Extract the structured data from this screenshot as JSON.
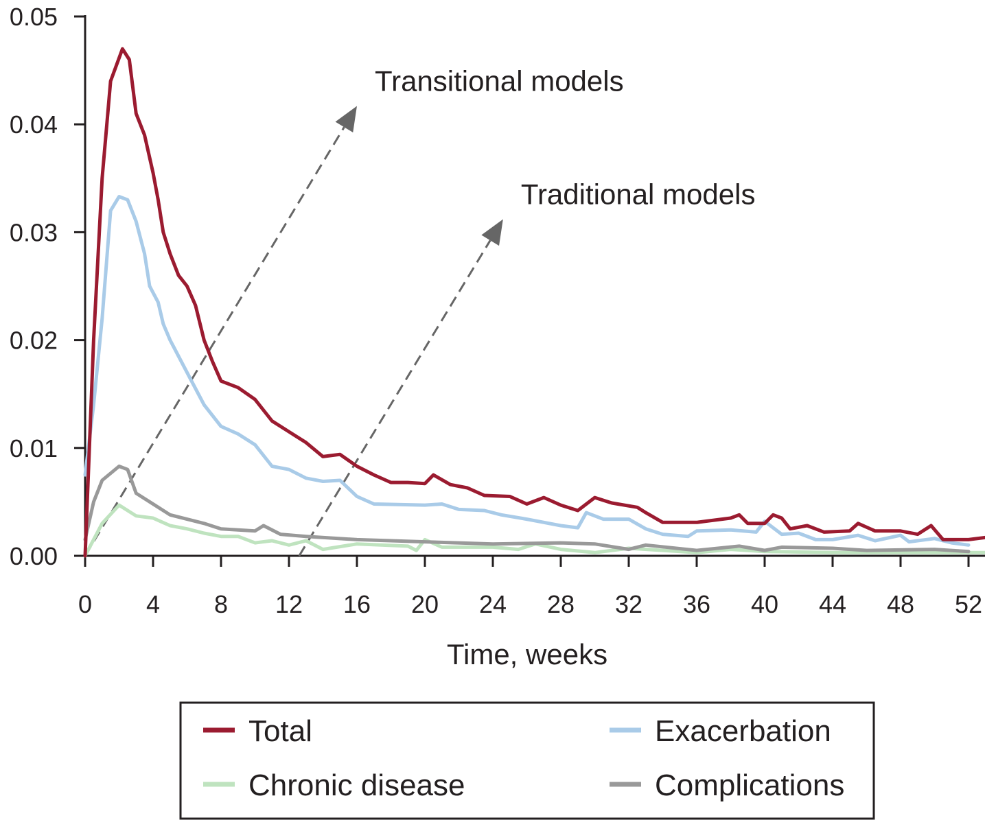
{
  "chart_data": {
    "type": "line",
    "title": "",
    "xlabel": "Time, weeks",
    "ylabel": "",
    "xlim": [
      0,
      53
    ],
    "ylim": [
      0,
      0.05
    ],
    "xticks": [
      0,
      4,
      8,
      12,
      16,
      20,
      24,
      28,
      32,
      36,
      40,
      44,
      48,
      52
    ],
    "yticks": [
      0.0,
      0.01,
      0.02,
      0.03,
      0.04,
      0.05
    ],
    "ytick_labels": [
      "0.00",
      "0.01",
      "0.02",
      "0.03",
      "0.04",
      "0.05"
    ],
    "grid": false,
    "legend_placement": "bottom",
    "series": [
      {
        "name": "Total",
        "color": "#9b1b30",
        "points": [
          [
            0,
            0
          ],
          [
            0.5,
            0.02
          ],
          [
            1,
            0.035
          ],
          [
            1.5,
            0.044
          ],
          [
            2.2,
            0.047
          ],
          [
            2.6,
            0.046
          ],
          [
            3,
            0.041
          ],
          [
            3.5,
            0.039
          ],
          [
            4,
            0.0355
          ],
          [
            4.3,
            0.033
          ],
          [
            4.6,
            0.03
          ],
          [
            5,
            0.028
          ],
          [
            5.5,
            0.026
          ],
          [
            6,
            0.025
          ],
          [
            6.5,
            0.0232
          ],
          [
            7,
            0.02
          ],
          [
            7.5,
            0.018
          ],
          [
            8,
            0.0162
          ],
          [
            9,
            0.0156
          ],
          [
            10,
            0.0145
          ],
          [
            11,
            0.0125
          ],
          [
            12,
            0.0115
          ],
          [
            13,
            0.0105
          ],
          [
            14,
            0.0092
          ],
          [
            15,
            0.0094
          ],
          [
            16,
            0.0083
          ],
          [
            17,
            0.0075
          ],
          [
            18,
            0.0068
          ],
          [
            19,
            0.0068
          ],
          [
            20,
            0.0067
          ],
          [
            20.5,
            0.0075
          ],
          [
            21.5,
            0.0066
          ],
          [
            22.5,
            0.0063
          ],
          [
            23.5,
            0.0056
          ],
          [
            25,
            0.0055
          ],
          [
            26,
            0.0048
          ],
          [
            27,
            0.0054
          ],
          [
            28,
            0.0047
          ],
          [
            29,
            0.0042
          ],
          [
            30,
            0.0054
          ],
          [
            31,
            0.0049
          ],
          [
            32.5,
            0.0045
          ],
          [
            33,
            0.004
          ],
          [
            34,
            0.0031
          ],
          [
            36,
            0.0031
          ],
          [
            38,
            0.0035
          ],
          [
            38.5,
            0.0038
          ],
          [
            39,
            0.003
          ],
          [
            40,
            0.003
          ],
          [
            40.5,
            0.0038
          ],
          [
            41,
            0.0035
          ],
          [
            41.5,
            0.0025
          ],
          [
            42.5,
            0.0028
          ],
          [
            43.5,
            0.0022
          ],
          [
            45,
            0.0023
          ],
          [
            45.5,
            0.003
          ],
          [
            46.5,
            0.0023
          ],
          [
            48,
            0.0023
          ],
          [
            49,
            0.002
          ],
          [
            49.8,
            0.0028
          ],
          [
            50.5,
            0.0015
          ],
          [
            52,
            0.0015
          ],
          [
            53,
            0.0017
          ]
        ]
      },
      {
        "name": "Exacerbation",
        "color": "#a9cbe8",
        "points": [
          [
            0,
            0.0075
          ],
          [
            0.5,
            0.014
          ],
          [
            1,
            0.022
          ],
          [
            1.5,
            0.032
          ],
          [
            2,
            0.0333
          ],
          [
            2.5,
            0.033
          ],
          [
            3,
            0.031
          ],
          [
            3.5,
            0.028
          ],
          [
            3.8,
            0.025
          ],
          [
            4.3,
            0.0235
          ],
          [
            4.6,
            0.0215
          ],
          [
            5,
            0.02
          ],
          [
            6,
            0.017
          ],
          [
            7,
            0.014
          ],
          [
            8,
            0.012
          ],
          [
            9,
            0.0113
          ],
          [
            10,
            0.0103
          ],
          [
            11,
            0.0083
          ],
          [
            12,
            0.008
          ],
          [
            13,
            0.0072
          ],
          [
            14,
            0.0069
          ],
          [
            15,
            0.007
          ],
          [
            16,
            0.0055
          ],
          [
            17,
            0.0048
          ],
          [
            20,
            0.0047
          ],
          [
            21,
            0.0048
          ],
          [
            22,
            0.0043
          ],
          [
            23.5,
            0.0042
          ],
          [
            24.5,
            0.0038
          ],
          [
            26,
            0.0034
          ],
          [
            28,
            0.0028
          ],
          [
            29,
            0.0026
          ],
          [
            29.5,
            0.004
          ],
          [
            30.5,
            0.0034
          ],
          [
            32,
            0.0034
          ],
          [
            33,
            0.0025
          ],
          [
            34,
            0.002
          ],
          [
            35.5,
            0.0018
          ],
          [
            36,
            0.0023
          ],
          [
            38,
            0.0024
          ],
          [
            39.5,
            0.0022
          ],
          [
            40,
            0.0032
          ],
          [
            41,
            0.002
          ],
          [
            42,
            0.0021
          ],
          [
            43,
            0.0015
          ],
          [
            44,
            0.0015
          ],
          [
            45.5,
            0.0019
          ],
          [
            46.5,
            0.0014
          ],
          [
            48,
            0.0019
          ],
          [
            48.5,
            0.0013
          ],
          [
            50,
            0.0016
          ],
          [
            51,
            0.0012
          ],
          [
            52,
            0.001
          ]
        ]
      },
      {
        "name": "Chronic disease",
        "color": "#bfe3bf",
        "points": [
          [
            0,
            0
          ],
          [
            1,
            0.003
          ],
          [
            2,
            0.0047
          ],
          [
            3,
            0.0037
          ],
          [
            4,
            0.0035
          ],
          [
            5,
            0.0028
          ],
          [
            6,
            0.0025
          ],
          [
            7,
            0.0021
          ],
          [
            8,
            0.0018
          ],
          [
            9,
            0.0018
          ],
          [
            10,
            0.0012
          ],
          [
            11,
            0.0014
          ],
          [
            12,
            0.001
          ],
          [
            13,
            0.0014
          ],
          [
            14,
            0.0006
          ],
          [
            16,
            0.0011
          ],
          [
            19,
            0.0009
          ],
          [
            19.5,
            0.0005
          ],
          [
            20,
            0.0015
          ],
          [
            21,
            0.0008
          ],
          [
            24,
            0.0008
          ],
          [
            25.5,
            0.0006
          ],
          [
            26.5,
            0.0011
          ],
          [
            28,
            0.0006
          ],
          [
            30,
            0.0003
          ],
          [
            32,
            0.0007
          ],
          [
            34,
            0.0005
          ],
          [
            36,
            0.0003
          ],
          [
            38,
            0.0006
          ],
          [
            40,
            0.0004
          ],
          [
            44,
            0.0003
          ],
          [
            48,
            0.0003
          ],
          [
            53,
            0.0003
          ]
        ]
      },
      {
        "name": "Complications",
        "color": "#999999",
        "points": [
          [
            0,
            0.0015
          ],
          [
            0.5,
            0.005
          ],
          [
            1,
            0.007
          ],
          [
            2,
            0.0083
          ],
          [
            2.5,
            0.008
          ],
          [
            3,
            0.0058
          ],
          [
            4,
            0.0048
          ],
          [
            5,
            0.0038
          ],
          [
            6,
            0.0034
          ],
          [
            7,
            0.003
          ],
          [
            8,
            0.0025
          ],
          [
            10,
            0.0023
          ],
          [
            10.5,
            0.0028
          ],
          [
            11.5,
            0.002
          ],
          [
            13,
            0.0018
          ],
          [
            16,
            0.0015
          ],
          [
            20,
            0.0013
          ],
          [
            24,
            0.0011
          ],
          [
            28,
            0.0012
          ],
          [
            30,
            0.0011
          ],
          [
            32,
            0.0006
          ],
          [
            33,
            0.001
          ],
          [
            36,
            0.0005
          ],
          [
            38.5,
            0.0009
          ],
          [
            40,
            0.0005
          ],
          [
            41,
            0.0008
          ],
          [
            44,
            0.0007
          ],
          [
            46,
            0.0005
          ],
          [
            50,
            0.0006
          ],
          [
            52,
            0.0004
          ]
        ]
      }
    ],
    "annotations": [
      {
        "text": "Transitional models",
        "arrow_from": [
          0,
          0
        ],
        "arrow_to": [
          16,
          0.0417
        ]
      },
      {
        "text": "Traditional models",
        "arrow_from": [
          12.6,
          0
        ],
        "arrow_to": [
          24.6,
          0.0312
        ]
      }
    ]
  }
}
